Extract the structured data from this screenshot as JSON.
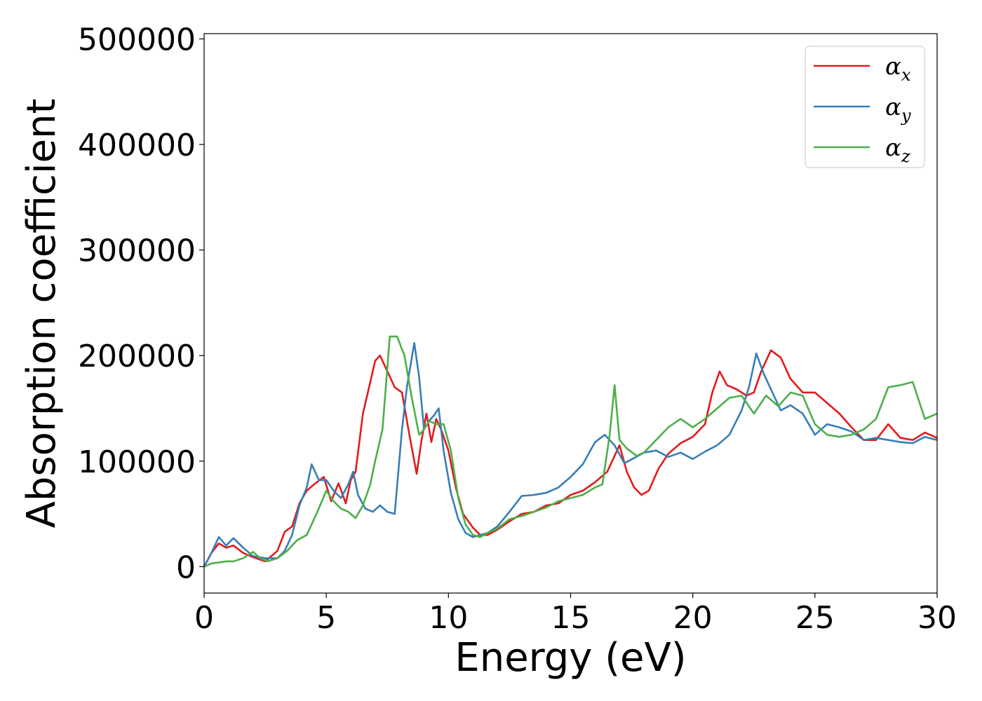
{
  "chart_data": {
    "type": "line",
    "title": "",
    "xlabel": "Energy (eV)",
    "ylabel": "Absorption coefficient",
    "xlim": [
      0,
      30
    ],
    "ylim": [
      -25000,
      505000
    ],
    "xticks": [
      0,
      5,
      10,
      15,
      20,
      25,
      30
    ],
    "xtick_labels": [
      "0",
      "5",
      "10",
      "15",
      "20",
      "25",
      "30"
    ],
    "yticks": [
      0,
      100000,
      200000,
      300000,
      400000,
      500000
    ],
    "ytick_labels": [
      "0",
      "100000",
      "200000",
      "300000",
      "400000",
      "500000"
    ],
    "grid": false,
    "legend_position": "top-right",
    "series": [
      {
        "name": "α_x",
        "label_main": "α",
        "label_sub": "x",
        "color": "#e41a1c",
        "x": [
          0,
          0.3,
          0.6,
          0.9,
          1.2,
          1.6,
          2.0,
          2.5,
          3.0,
          3.3,
          3.6,
          3.9,
          4.2,
          4.5,
          4.9,
          5.2,
          5.5,
          5.8,
          6.0,
          6.2,
          6.5,
          6.8,
          7.0,
          7.2,
          7.5,
          7.8,
          8.1,
          8.4,
          8.7,
          8.9,
          9.1,
          9.3,
          9.5,
          9.7,
          10.0,
          10.3,
          10.6,
          11.0,
          11.3,
          11.6,
          12.0,
          12.5,
          13.0,
          13.5,
          14.0,
          14.5,
          15.0,
          15.5,
          16.0,
          16.5,
          16.8,
          17.0,
          17.3,
          17.6,
          17.9,
          18.2,
          18.6,
          19.0,
          19.5,
          20.0,
          20.5,
          20.8,
          21.1,
          21.4,
          21.8,
          22.2,
          22.5,
          22.8,
          23.2,
          23.6,
          24.0,
          24.5,
          25.0,
          25.5,
          26.0,
          26.5,
          27.0,
          27.5,
          28.0,
          28.5,
          29.0,
          29.5,
          30.0
        ],
        "y": [
          0,
          13000,
          22000,
          18000,
          20000,
          13000,
          9000,
          5000,
          15000,
          33000,
          38000,
          60000,
          72000,
          78000,
          85000,
          62000,
          79000,
          60000,
          82000,
          90000,
          145000,
          175000,
          195000,
          200000,
          185000,
          170000,
          165000,
          125000,
          88000,
          120000,
          145000,
          118000,
          140000,
          130000,
          110000,
          75000,
          50000,
          37000,
          30000,
          30000,
          35000,
          43000,
          50000,
          52000,
          58000,
          60000,
          68000,
          72000,
          80000,
          90000,
          105000,
          115000,
          90000,
          75000,
          68000,
          72000,
          93000,
          107000,
          117000,
          123000,
          135000,
          165000,
          185000,
          172000,
          168000,
          162000,
          165000,
          185000,
          205000,
          198000,
          178000,
          165000,
          165000,
          155000,
          145000,
          132000,
          120000,
          120000,
          135000,
          122000,
          120000,
          127000,
          122000
        ]
      },
      {
        "name": "α_y",
        "label_main": "α",
        "label_sub": "y",
        "color": "#377eb8",
        "x": [
          0,
          0.3,
          0.6,
          0.9,
          1.2,
          1.6,
          2.0,
          2.5,
          3.0,
          3.3,
          3.6,
          3.9,
          4.2,
          4.4,
          4.7,
          5.0,
          5.3,
          5.6,
          5.9,
          6.1,
          6.3,
          6.6,
          6.9,
          7.2,
          7.5,
          7.8,
          8.1,
          8.3,
          8.6,
          8.8,
          9.0,
          9.2,
          9.4,
          9.6,
          9.8,
          10.1,
          10.4,
          10.7,
          11.0,
          11.3,
          11.6,
          12.0,
          12.5,
          13.0,
          13.5,
          14.0,
          14.5,
          15.0,
          15.5,
          16.0,
          16.4,
          16.8,
          17.2,
          17.6,
          18.0,
          18.5,
          19.0,
          19.5,
          20.0,
          20.5,
          21.0,
          21.5,
          22.0,
          22.3,
          22.6,
          22.9,
          23.2,
          23.6,
          24.0,
          24.5,
          25.0,
          25.5,
          26.0,
          26.5,
          27.0,
          27.5,
          28.0,
          28.5,
          29.0,
          29.5,
          30.0
        ],
        "y": [
          0,
          13000,
          28000,
          20000,
          27000,
          18000,
          10000,
          8000,
          8000,
          15000,
          30000,
          58000,
          75000,
          97000,
          82000,
          82000,
          72000,
          65000,
          78000,
          90000,
          68000,
          55000,
          52000,
          58000,
          52000,
          50000,
          130000,
          170000,
          212000,
          180000,
          130000,
          138000,
          143000,
          150000,
          110000,
          70000,
          45000,
          32000,
          28000,
          30000,
          32000,
          38000,
          52000,
          67000,
          68000,
          70000,
          75000,
          85000,
          97000,
          118000,
          125000,
          115000,
          98000,
          103000,
          108000,
          110000,
          104000,
          108000,
          102000,
          109000,
          115000,
          125000,
          148000,
          170000,
          202000,
          183000,
          168000,
          148000,
          153000,
          145000,
          125000,
          135000,
          132000,
          128000,
          120000,
          122000,
          120000,
          118000,
          117000,
          123000,
          120000
        ]
      },
      {
        "name": "α_z",
        "label_main": "α",
        "label_sub": "z",
        "color": "#4daf4a",
        "x": [
          0,
          0.3,
          0.6,
          0.9,
          1.2,
          1.6,
          2.0,
          2.3,
          2.6,
          3.0,
          3.4,
          3.8,
          4.2,
          4.6,
          5.0,
          5.3,
          5.6,
          5.9,
          6.2,
          6.5,
          6.8,
          7.0,
          7.3,
          7.6,
          7.9,
          8.2,
          8.5,
          8.8,
          9.0,
          9.2,
          9.5,
          9.8,
          10.1,
          10.4,
          10.7,
          11.0,
          11.3,
          11.6,
          12.0,
          12.5,
          13.0,
          13.5,
          14.0,
          14.5,
          15.0,
          15.5,
          16.0,
          16.3,
          16.6,
          16.8,
          17.0,
          17.3,
          17.7,
          18.0,
          18.5,
          19.0,
          19.5,
          20.0,
          20.5,
          21.0,
          21.5,
          22.0,
          22.5,
          23.0,
          23.5,
          24.0,
          24.5,
          25.0,
          25.5,
          26.0,
          26.5,
          27.0,
          27.5,
          28.0,
          28.5,
          29.0,
          29.5,
          30.0
        ],
        "y": [
          0,
          3000,
          4000,
          5000,
          5000,
          8000,
          14000,
          8000,
          5000,
          8000,
          15000,
          25000,
          30000,
          50000,
          72000,
          62000,
          55000,
          52000,
          46000,
          58000,
          78000,
          100000,
          130000,
          218000,
          218000,
          200000,
          160000,
          125000,
          130000,
          138000,
          135000,
          135000,
          110000,
          65000,
          40000,
          30000,
          28000,
          32000,
          36000,
          45000,
          48000,
          52000,
          56000,
          62000,
          65000,
          68000,
          75000,
          78000,
          125000,
          172000,
          120000,
          112000,
          105000,
          108000,
          120000,
          132000,
          140000,
          132000,
          140000,
          150000,
          160000,
          162000,
          145000,
          162000,
          152000,
          165000,
          162000,
          135000,
          125000,
          123000,
          125000,
          130000,
          140000,
          170000,
          172000,
          175000,
          140000,
          145000
        ]
      }
    ]
  }
}
